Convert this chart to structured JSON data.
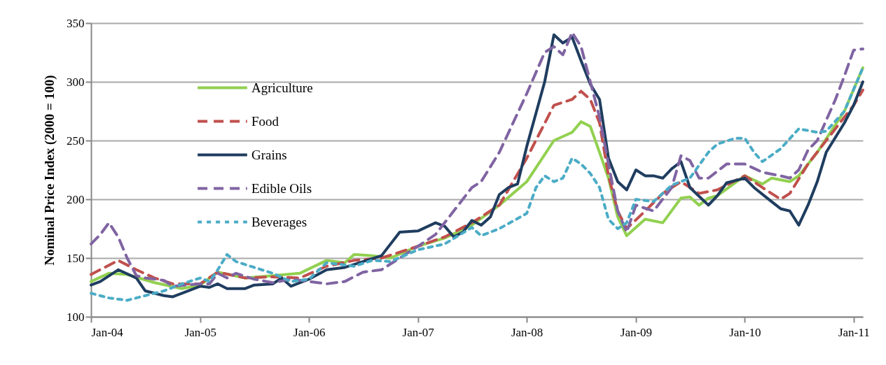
{
  "chart_data": {
    "type": "line",
    "ylabel": "Nominal Price Index (2000 = 100)",
    "xlim": [
      "2004-01",
      "2011-02"
    ],
    "xticks": [
      {
        "value": "2004-01",
        "label": "Jan-04"
      },
      {
        "value": "2005-01",
        "label": "Jan-05"
      },
      {
        "value": "2006-01",
        "label": "Jan-06"
      },
      {
        "value": "2007-01",
        "label": "Jan-07"
      },
      {
        "value": "2008-01",
        "label": "Jan-08"
      },
      {
        "value": "2009-01",
        "label": "Jan-09"
      },
      {
        "value": "2010-01",
        "label": "Jan-10"
      },
      {
        "value": "2011-01",
        "label": "Jan-11"
      }
    ],
    "ylim": [
      100,
      350
    ],
    "yticks": [
      100,
      150,
      200,
      250,
      300,
      350
    ],
    "grid": "y",
    "legend": "top left",
    "series": [
      {
        "name": "Agriculture",
        "color": "#92d050",
        "line_style": "solid",
        "x": [
          "2004-01",
          "2004-03",
          "2004-05",
          "2004-08",
          "2004-11",
          "2005-01",
          "2005-03",
          "2005-06",
          "2005-09",
          "2005-12",
          "2006-03",
          "2006-05",
          "2006-06",
          "2006-08",
          "2006-10",
          "2007-01",
          "2007-04",
          "2007-07",
          "2007-10",
          "2008-01",
          "2008-04",
          "2008-06",
          "2008-07",
          "2008-08",
          "2008-09",
          "2008-10",
          "2008-11",
          "2008-12",
          "2009-02",
          "2009-04",
          "2009-06",
          "2009-07",
          "2009-08",
          "2009-09",
          "2009-10",
          "2010-01",
          "2010-03",
          "2010-04",
          "2010-06",
          "2010-07",
          "2010-09",
          "2010-12",
          "2011-02"
        ],
        "values": [
          130,
          137,
          136,
          129,
          124,
          127,
          138,
          133,
          135,
          137,
          148,
          146,
          153,
          152,
          150,
          160,
          167,
          178,
          195,
          215,
          250,
          257,
          266,
          262,
          240,
          218,
          185,
          169,
          183,
          180,
          201,
          202,
          195,
          201,
          203,
          220,
          213,
          218,
          215,
          220,
          240,
          275,
          312
        ]
      },
      {
        "name": "Food",
        "color": "#c0504d",
        "line_style": "dashed",
        "x": [
          "2004-01",
          "2004-04",
          "2004-06",
          "2004-08",
          "2004-10",
          "2005-01",
          "2005-03",
          "2005-06",
          "2005-09",
          "2005-12",
          "2006-03",
          "2006-06",
          "2006-09",
          "2007-01",
          "2007-04",
          "2007-07",
          "2007-10",
          "2008-01",
          "2008-04",
          "2008-06",
          "2008-07",
          "2008-08",
          "2008-09",
          "2008-10",
          "2008-11",
          "2008-12",
          "2009-02",
          "2009-04",
          "2009-06",
          "2009-08",
          "2009-10",
          "2010-01",
          "2010-03",
          "2010-05",
          "2010-06",
          "2010-08",
          "2010-10",
          "2011-01",
          "2011-02"
        ],
        "values": [
          136,
          148,
          140,
          133,
          128,
          128,
          138,
          133,
          134,
          133,
          143,
          148,
          150,
          160,
          168,
          180,
          195,
          235,
          280,
          285,
          292,
          285,
          265,
          220,
          190,
          175,
          190,
          205,
          215,
          205,
          208,
          220,
          210,
          200,
          205,
          230,
          250,
          280,
          293
        ]
      },
      {
        "name": "Grains",
        "color": "#1f3d5f",
        "line_style": "solid",
        "x": [
          "2004-01",
          "2004-02",
          "2004-04",
          "2004-06",
          "2004-07",
          "2004-09",
          "2004-10",
          "2005-01",
          "2005-02",
          "2005-03",
          "2005-04",
          "2005-06",
          "2005-07",
          "2005-09",
          "2005-10",
          "2005-11",
          "2006-01",
          "2006-03",
          "2006-05",
          "2006-07",
          "2006-09",
          "2006-11",
          "2007-01",
          "2007-03",
          "2007-04",
          "2007-05",
          "2007-06",
          "2007-07",
          "2007-08",
          "2007-09",
          "2007-10",
          "2007-11",
          "2007-12",
          "2008-01",
          "2008-03",
          "2008-04",
          "2008-05",
          "2008-06",
          "2008-07",
          "2008-08",
          "2008-09",
          "2008-10",
          "2008-11",
          "2008-12",
          "2009-01",
          "2009-02",
          "2009-03",
          "2009-04",
          "2009-05",
          "2009-06",
          "2009-07",
          "2009-09",
          "2009-10",
          "2009-11",
          "2010-01",
          "2010-02",
          "2010-04",
          "2010-05",
          "2010-06",
          "2010-07",
          "2010-08",
          "2010-09",
          "2010-10",
          "2010-12",
          "2011-01",
          "2011-02"
        ],
        "values": [
          127,
          130,
          140,
          133,
          122,
          118,
          117,
          126,
          125,
          128,
          124,
          124,
          127,
          128,
          133,
          126,
          132,
          140,
          142,
          147,
          152,
          172,
          173,
          180,
          177,
          168,
          172,
          182,
          178,
          185,
          204,
          210,
          213,
          245,
          300,
          340,
          333,
          338,
          318,
          298,
          285,
          235,
          215,
          208,
          225,
          220,
          220,
          218,
          226,
          232,
          210,
          195,
          203,
          214,
          218,
          210,
          198,
          192,
          190,
          178,
          195,
          215,
          240,
          265,
          280,
          300
        ]
      },
      {
        "name": "Edible Oils",
        "color": "#8064a2",
        "line_style": "dashed",
        "x": [
          "2004-01",
          "2004-02",
          "2004-03",
          "2004-04",
          "2004-05",
          "2004-06",
          "2004-07",
          "2004-09",
          "2004-10",
          "2005-01",
          "2005-02",
          "2005-03",
          "2005-04",
          "2005-05",
          "2005-07",
          "2005-09",
          "2005-11",
          "2006-01",
          "2006-03",
          "2006-05",
          "2006-07",
          "2006-09",
          "2006-11",
          "2007-01",
          "2007-03",
          "2007-05",
          "2007-07",
          "2007-08",
          "2007-10",
          "2008-01",
          "2008-03",
          "2008-04",
          "2008-05",
          "2008-06",
          "2008-07",
          "2008-08",
          "2008-09",
          "2008-10",
          "2008-11",
          "2008-12",
          "2009-01",
          "2009-03",
          "2009-05",
          "2009-06",
          "2009-07",
          "2009-08",
          "2009-09",
          "2009-11",
          "2010-01",
          "2010-03",
          "2010-05",
          "2010-06",
          "2010-07",
          "2010-08",
          "2010-09",
          "2010-11",
          "2010-12",
          "2011-01",
          "2011-02"
        ],
        "values": [
          162,
          170,
          180,
          168,
          150,
          135,
          133,
          131,
          126,
          128,
          128,
          137,
          133,
          137,
          132,
          129,
          132,
          130,
          128,
          130,
          138,
          140,
          150,
          160,
          170,
          190,
          210,
          215,
          240,
          290,
          325,
          330,
          323,
          342,
          330,
          300,
          270,
          230,
          190,
          172,
          195,
          190,
          210,
          237,
          233,
          218,
          218,
          230,
          230,
          223,
          220,
          218,
          225,
          242,
          250,
          285,
          305,
          327,
          328
        ]
      },
      {
        "name": "Beverages",
        "color": "#4bacc6",
        "line_style": "dotted",
        "x": [
          "2004-01",
          "2004-03",
          "2004-05",
          "2004-07",
          "2004-09",
          "2004-11",
          "2005-01",
          "2005-02",
          "2005-03",
          "2005-04",
          "2005-05",
          "2005-07",
          "2005-09",
          "2005-11",
          "2006-01",
          "2006-03",
          "2006-06",
          "2006-08",
          "2006-10",
          "2007-01",
          "2007-04",
          "2007-07",
          "2007-08",
          "2007-10",
          "2008-01",
          "2008-02",
          "2008-03",
          "2008-04",
          "2008-05",
          "2008-06",
          "2008-07",
          "2008-08",
          "2008-09",
          "2008-10",
          "2008-11",
          "2008-12",
          "2009-01",
          "2009-03",
          "2009-05",
          "2009-07",
          "2009-09",
          "2009-10",
          "2009-12",
          "2010-01",
          "2010-02",
          "2010-03",
          "2010-05",
          "2010-07",
          "2010-09",
          "2010-10",
          "2010-12",
          "2011-02"
        ],
        "values": [
          120,
          116,
          114,
          118,
          122,
          128,
          133,
          130,
          140,
          153,
          147,
          142,
          137,
          130,
          132,
          146,
          143,
          148,
          147,
          157,
          162,
          176,
          169,
          175,
          188,
          210,
          220,
          215,
          218,
          235,
          230,
          222,
          210,
          183,
          175,
          180,
          200,
          198,
          212,
          218,
          240,
          247,
          252,
          252,
          240,
          232,
          243,
          260,
          257,
          258,
          275,
          312
        ]
      }
    ]
  }
}
